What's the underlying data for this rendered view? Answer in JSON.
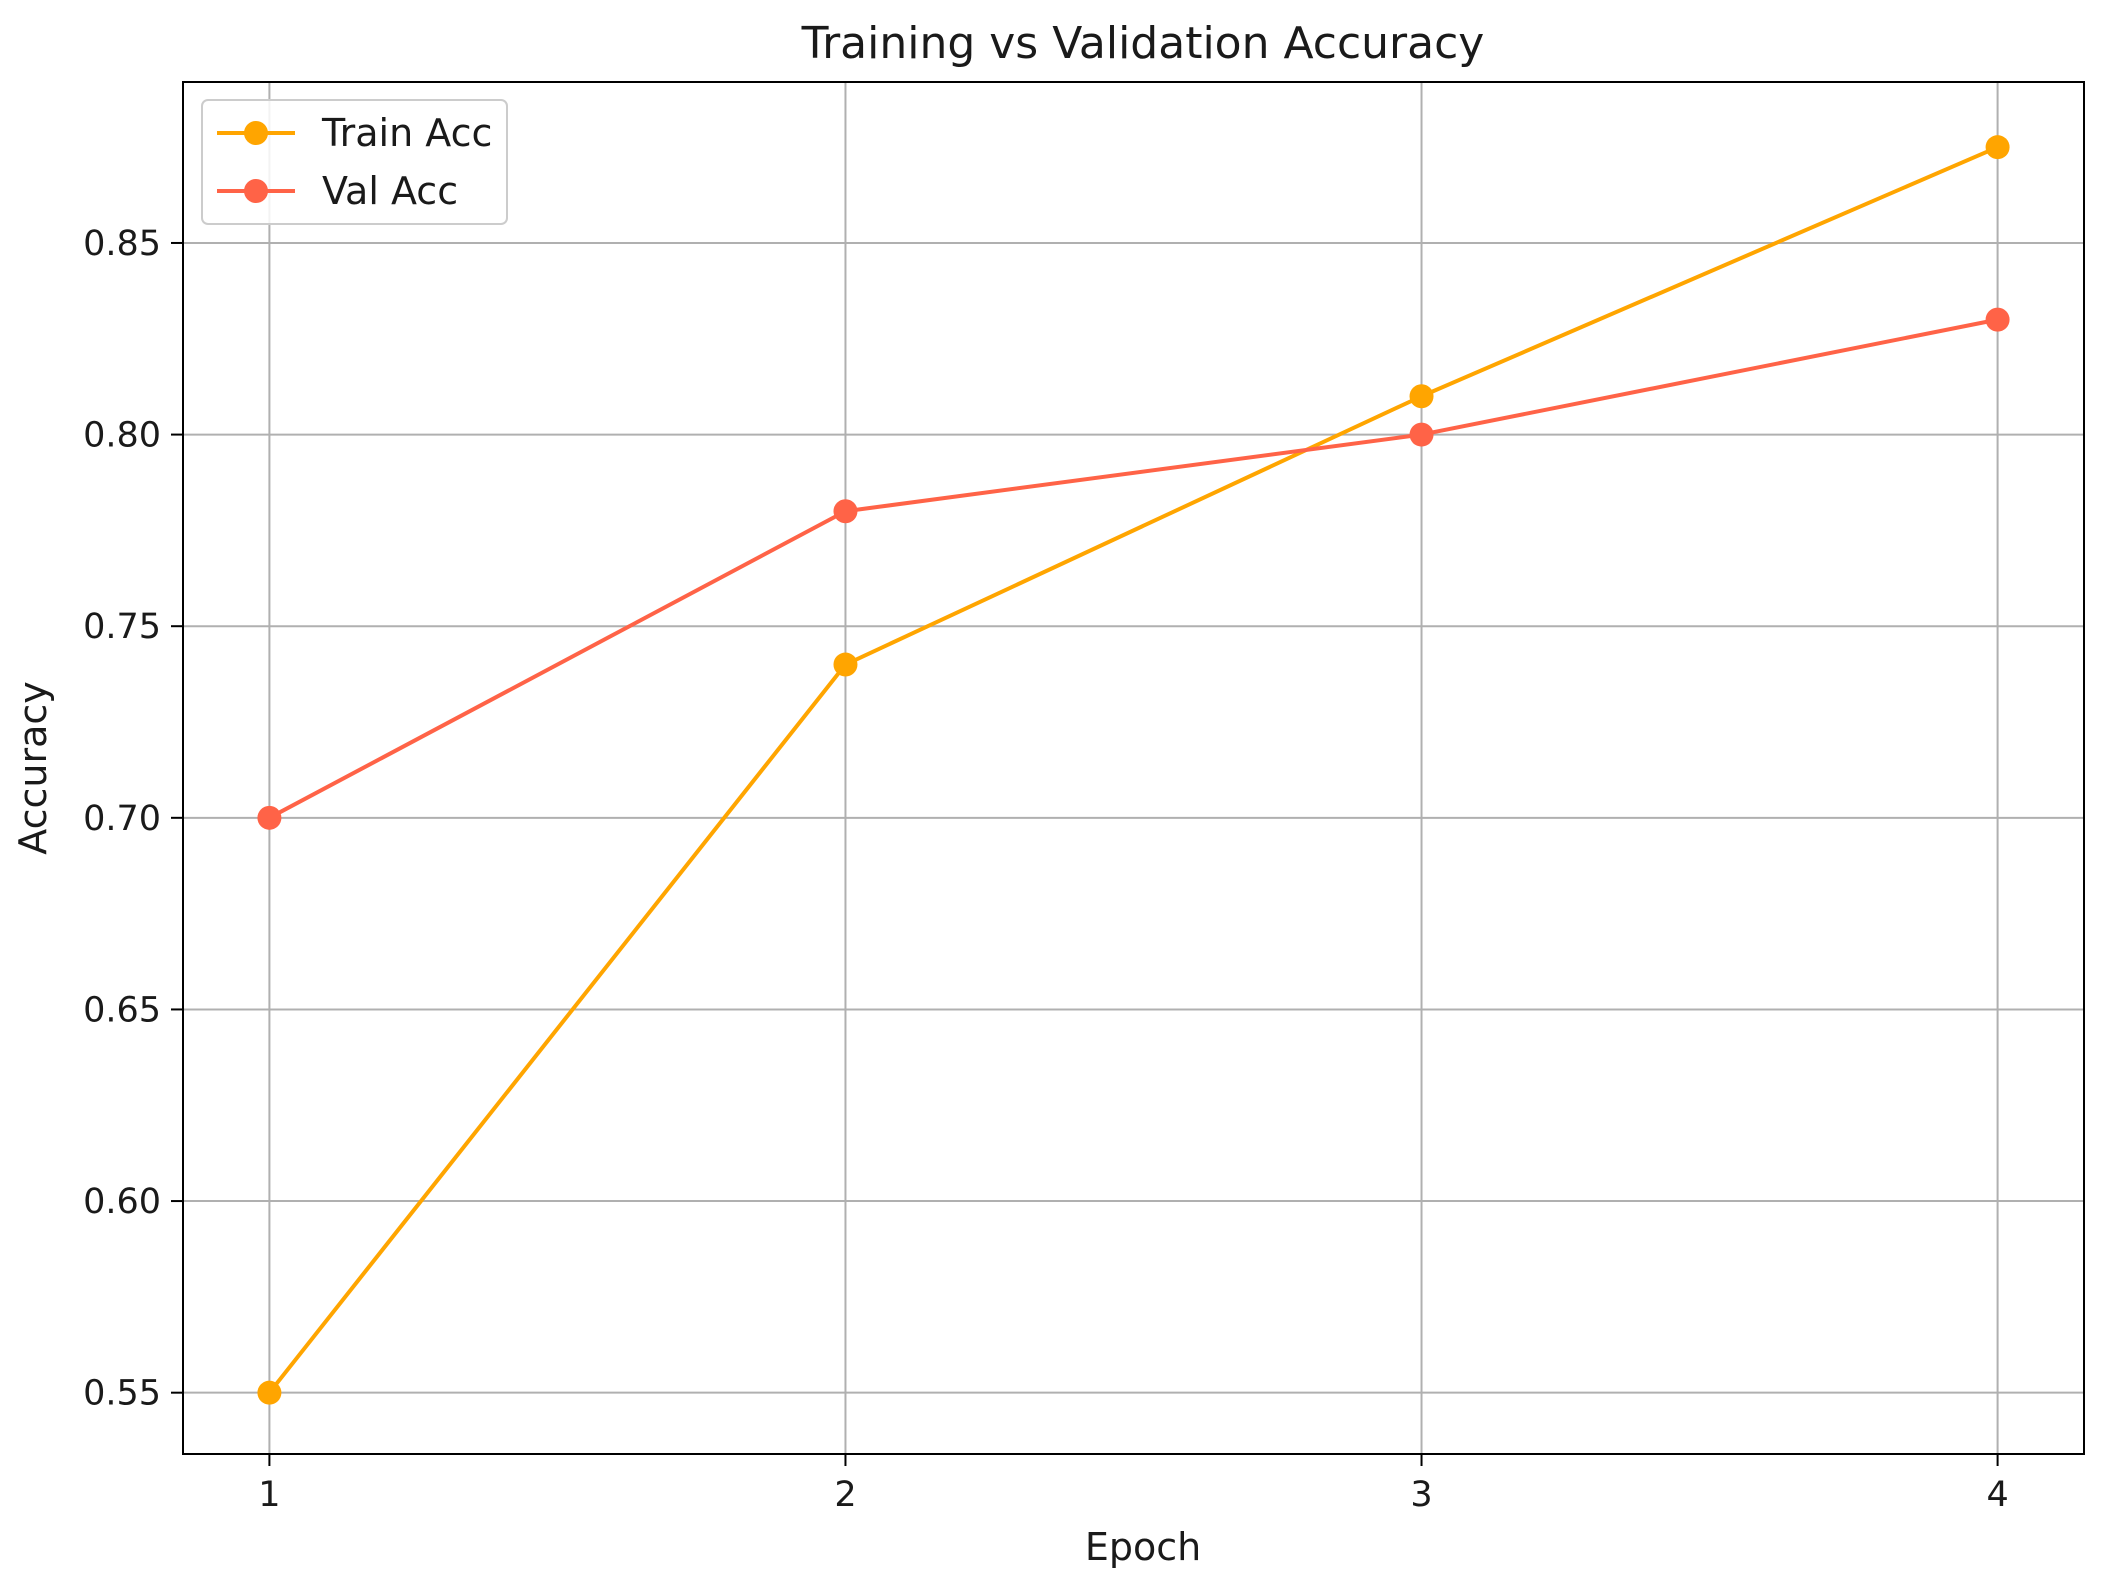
{
  "chart_data": {
    "type": "line",
    "title": "Training vs Validation Accuracy",
    "xlabel": "Epoch",
    "ylabel": "Accuracy",
    "x": [
      1,
      2,
      3,
      4
    ],
    "xticks": [
      "1",
      "2",
      "3",
      "4"
    ],
    "yticks": [
      "0.55",
      "0.60",
      "0.65",
      "0.70",
      "0.75",
      "0.80",
      "0.85"
    ],
    "ytick_values": [
      0.55,
      0.6,
      0.65,
      0.7,
      0.75,
      0.8,
      0.85
    ],
    "xlim": [
      0.85,
      4.15
    ],
    "ylim": [
      0.534,
      0.892
    ],
    "grid": true,
    "legend_position": "top-left",
    "series": [
      {
        "name": "Train Acc",
        "values": [
          0.55,
          0.74,
          0.81,
          0.875
        ],
        "color": "#FFA500",
        "marker": "circle"
      },
      {
        "name": "Val Acc",
        "values": [
          0.7,
          0.78,
          0.8,
          0.83
        ],
        "color": "#FF6347",
        "marker": "circle"
      }
    ]
  }
}
